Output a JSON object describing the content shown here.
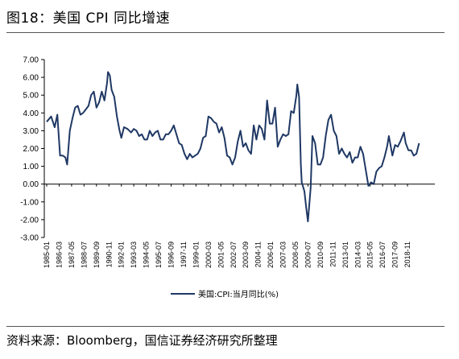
{
  "header": {
    "figure_title": "图18：美国 CPI 同比增速"
  },
  "footer": {
    "source": "资料来源：Bloomberg，国信证券经济研究所整理"
  },
  "colors": {
    "series_line": "#1f3864"
  },
  "chart_data": {
    "type": "line",
    "title": "图18：美国 CPI 同比增速",
    "xlabel": "",
    "ylabel": "",
    "ylim": [
      -3.0,
      7.0
    ],
    "y_ticks": [
      "7.00",
      "6.00",
      "5.00",
      "4.00",
      "3.00",
      "2.00",
      "1.00",
      "0.00",
      "-1.00",
      "-2.00",
      "-3.00"
    ],
    "x_tick_labels": [
      "1985-01",
      "1986-03",
      "1987-05",
      "1988-07",
      "1989-09",
      "1990-11",
      "1992-01",
      "1993-03",
      "1994-05",
      "1995-07",
      "1996-09",
      "1997-11",
      "1999-01",
      "2000-03",
      "2001-05",
      "2002-07",
      "2003-09",
      "2004-11",
      "2006-01",
      "2007-03",
      "2008-05",
      "2009-07",
      "2010-09",
      "2011-11",
      "2013-01",
      "2014-03",
      "2015-05",
      "2016-07",
      "2017-09",
      "2018-11"
    ],
    "grid": false,
    "legend_position": "bottom",
    "series": [
      {
        "name": "美国:CPI:当月同比(%)",
        "points": [
          [
            "1985-01",
            3.5
          ],
          [
            "1985-06",
            3.8
          ],
          [
            "1985-10",
            3.2
          ],
          [
            "1986-01",
            3.9
          ],
          [
            "1986-04",
            1.6
          ],
          [
            "1986-07",
            1.6
          ],
          [
            "1986-10",
            1.5
          ],
          [
            "1986-12",
            1.1
          ],
          [
            "1987-03",
            3.0
          ],
          [
            "1987-06",
            3.7
          ],
          [
            "1987-09",
            4.3
          ],
          [
            "1987-12",
            4.4
          ],
          [
            "1988-03",
            3.9
          ],
          [
            "1988-06",
            4.0
          ],
          [
            "1988-09",
            4.2
          ],
          [
            "1988-12",
            4.4
          ],
          [
            "1989-03",
            5.0
          ],
          [
            "1989-06",
            5.2
          ],
          [
            "1989-09",
            4.3
          ],
          [
            "1989-12",
            4.6
          ],
          [
            "1990-03",
            5.2
          ],
          [
            "1990-06",
            4.7
          ],
          [
            "1990-09",
            5.7
          ],
          [
            "1990-10",
            6.3
          ],
          [
            "1990-12",
            6.1
          ],
          [
            "1991-02",
            5.3
          ],
          [
            "1991-05",
            4.9
          ],
          [
            "1991-08",
            3.8
          ],
          [
            "1991-11",
            3.0
          ],
          [
            "1992-01",
            2.6
          ],
          [
            "1992-04",
            3.2
          ],
          [
            "1992-08",
            3.1
          ],
          [
            "1992-12",
            2.9
          ],
          [
            "1993-03",
            3.1
          ],
          [
            "1993-06",
            3.0
          ],
          [
            "1993-09",
            2.7
          ],
          [
            "1993-12",
            2.8
          ],
          [
            "1994-03",
            2.5
          ],
          [
            "1994-06",
            2.5
          ],
          [
            "1994-09",
            3.0
          ],
          [
            "1994-12",
            2.7
          ],
          [
            "1995-03",
            2.9
          ],
          [
            "1995-06",
            3.0
          ],
          [
            "1995-09",
            2.5
          ],
          [
            "1995-12",
            2.5
          ],
          [
            "1996-03",
            2.8
          ],
          [
            "1996-06",
            2.8
          ],
          [
            "1996-09",
            3.0
          ],
          [
            "1996-12",
            3.3
          ],
          [
            "1997-03",
            2.8
          ],
          [
            "1997-06",
            2.3
          ],
          [
            "1997-09",
            2.2
          ],
          [
            "1997-12",
            1.7
          ],
          [
            "1998-03",
            1.4
          ],
          [
            "1998-06",
            1.7
          ],
          [
            "1998-09",
            1.5
          ],
          [
            "1998-12",
            1.6
          ],
          [
            "1999-03",
            1.7
          ],
          [
            "1999-06",
            2.0
          ],
          [
            "1999-09",
            2.6
          ],
          [
            "1999-12",
            2.7
          ],
          [
            "2000-03",
            3.8
          ],
          [
            "2000-06",
            3.7
          ],
          [
            "2000-09",
            3.5
          ],
          [
            "2000-12",
            3.4
          ],
          [
            "2001-03",
            2.9
          ],
          [
            "2001-06",
            3.2
          ],
          [
            "2001-09",
            2.6
          ],
          [
            "2001-12",
            1.6
          ],
          [
            "2002-03",
            1.5
          ],
          [
            "2002-06",
            1.1
          ],
          [
            "2002-09",
            1.5
          ],
          [
            "2002-12",
            2.4
          ],
          [
            "2003-03",
            3.0
          ],
          [
            "2003-06",
            2.1
          ],
          [
            "2003-09",
            2.3
          ],
          [
            "2003-12",
            1.9
          ],
          [
            "2004-03",
            1.7
          ],
          [
            "2004-06",
            3.3
          ],
          [
            "2004-09",
            2.5
          ],
          [
            "2004-12",
            3.3
          ],
          [
            "2005-03",
            3.1
          ],
          [
            "2005-06",
            2.5
          ],
          [
            "2005-09",
            4.7
          ],
          [
            "2005-12",
            3.4
          ],
          [
            "2006-03",
            3.4
          ],
          [
            "2006-06",
            4.3
          ],
          [
            "2006-09",
            2.1
          ],
          [
            "2006-12",
            2.5
          ],
          [
            "2007-03",
            2.8
          ],
          [
            "2007-06",
            2.7
          ],
          [
            "2007-09",
            2.8
          ],
          [
            "2007-12",
            4.1
          ],
          [
            "2008-03",
            4.0
          ],
          [
            "2008-06",
            5.0
          ],
          [
            "2008-07",
            5.6
          ],
          [
            "2008-09",
            4.9
          ],
          [
            "2008-11",
            1.1
          ],
          [
            "2008-12",
            0.1
          ],
          [
            "2009-03",
            -0.4
          ],
          [
            "2009-05",
            -1.3
          ],
          [
            "2009-07",
            -2.1
          ],
          [
            "2009-10",
            -0.2
          ],
          [
            "2009-12",
            2.7
          ],
          [
            "2010-03",
            2.3
          ],
          [
            "2010-06",
            1.1
          ],
          [
            "2010-09",
            1.1
          ],
          [
            "2010-12",
            1.5
          ],
          [
            "2011-03",
            2.7
          ],
          [
            "2011-06",
            3.6
          ],
          [
            "2011-09",
            3.9
          ],
          [
            "2011-12",
            3.0
          ],
          [
            "2012-03",
            2.7
          ],
          [
            "2012-06",
            1.7
          ],
          [
            "2012-09",
            2.0
          ],
          [
            "2012-12",
            1.7
          ],
          [
            "2013-03",
            1.5
          ],
          [
            "2013-06",
            1.8
          ],
          [
            "2013-09",
            1.2
          ],
          [
            "2013-12",
            1.5
          ],
          [
            "2014-03",
            1.5
          ],
          [
            "2014-06",
            2.1
          ],
          [
            "2014-09",
            1.7
          ],
          [
            "2014-12",
            0.8
          ],
          [
            "2015-03",
            -0.1
          ],
          [
            "2015-06",
            0.1
          ],
          [
            "2015-09",
            0.0
          ],
          [
            "2015-12",
            0.7
          ],
          [
            "2016-03",
            0.9
          ],
          [
            "2016-06",
            1.0
          ],
          [
            "2016-09",
            1.5
          ],
          [
            "2016-12",
            2.1
          ],
          [
            "2017-02",
            2.7
          ],
          [
            "2017-06",
            1.6
          ],
          [
            "2017-09",
            2.2
          ],
          [
            "2017-12",
            2.1
          ],
          [
            "2018-03",
            2.4
          ],
          [
            "2018-07",
            2.9
          ],
          [
            "2018-09",
            2.3
          ],
          [
            "2018-12",
            1.9
          ],
          [
            "2019-03",
            1.9
          ],
          [
            "2019-06",
            1.6
          ],
          [
            "2019-09",
            1.7
          ],
          [
            "2019-12",
            2.3
          ]
        ]
      }
    ]
  }
}
